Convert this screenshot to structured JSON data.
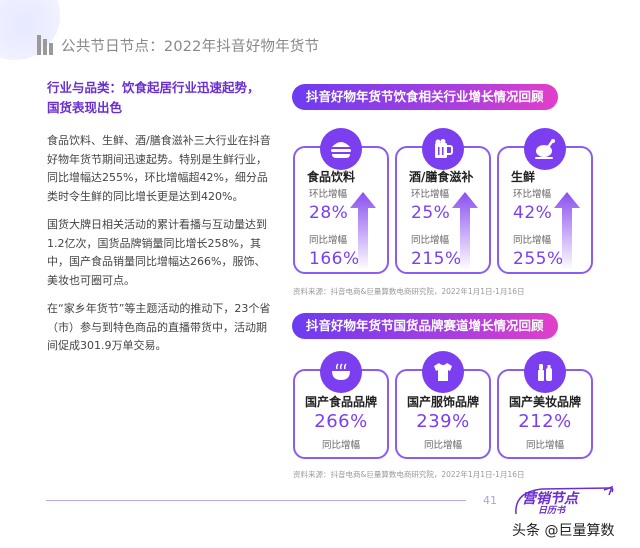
{
  "header": {
    "title": "公共节日节点：2022年抖音好物年货节"
  },
  "left": {
    "subtitle": "行业与品类：饮食起居行业迅速起势，国货表现出色",
    "para1": "食品饮料、生鲜、酒/膳食滋补三大行业在抖音好物年货节期间迅速起势。特别是生鲜行业，同比增幅达255%，环比增幅超42%，细分品类时令生鲜的同比增长更是达到420%。",
    "para2": "国货大牌日相关活动的累计看播与互动量达到1.2亿次，国货品牌销量同比增长258%，其中，国产食品销量同比增幅达266%，服饰、美妆也可圈可点。",
    "para3": "在“家乡年货节”等主题活动的推动下，23个省（市）参与到特色商品的直播带货中，活动期间促成301.9万单交易。"
  },
  "section1": {
    "title": "抖音好物年货节饮食相关行业增长情况回顾",
    "cards": [
      {
        "icon": "burger-icon",
        "name": "食品饮料",
        "lbl1": "环比增幅",
        "val1": "28%",
        "lbl2": "同比增幅",
        "val2": "166%"
      },
      {
        "icon": "beer-mug-icon",
        "name": "酒/膳食滋补",
        "lbl1": "环比增幅",
        "val1": "25%",
        "lbl2": "同比增幅",
        "val2": "215%"
      },
      {
        "icon": "roast-chicken-icon",
        "name": "生鲜",
        "lbl1": "环比增幅",
        "val1": "42%",
        "lbl2": "同比增幅",
        "val2": "255%"
      }
    ],
    "source": "资料来源：抖音电商&巨量算数电商研究院，2022年1月1日-1月16日"
  },
  "section2": {
    "title": "抖音好物年货节国货品牌赛道增长情况回顾",
    "cards": [
      {
        "icon": "bowl-icon",
        "name": "国产食品品牌",
        "val": "266%",
        "lbl": "同比增幅"
      },
      {
        "icon": "shirt-icon",
        "name": "国产服饰品牌",
        "val": "239%",
        "lbl": "同比增幅"
      },
      {
        "icon": "cosmetics-icon",
        "name": "国产美妆品牌",
        "val": "212%",
        "lbl": "同比增幅"
      }
    ],
    "source": "资料来源：抖音电商&巨量算数电商研究院，2022年1月1日-1月16日"
  },
  "footer": {
    "page_number": "41",
    "logo_main": "营销节点",
    "logo_sub": "日历书",
    "watermark": "头条 @巨量算数"
  },
  "colors": {
    "accent": "#7b3ff0",
    "pill_start": "#6c3cf0",
    "pill_end": "#e23fc9"
  }
}
